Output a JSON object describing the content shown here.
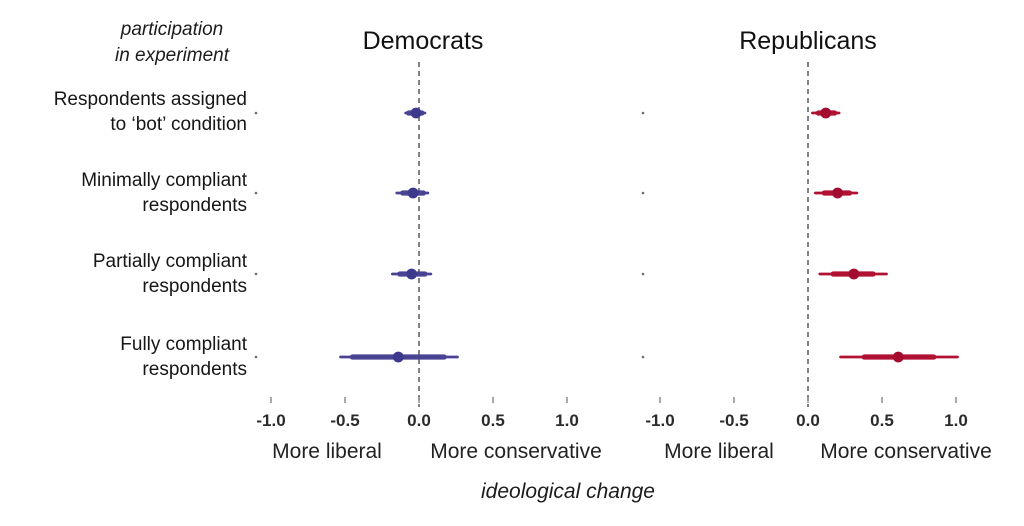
{
  "y_axis_title": {
    "lines": [
      "participation",
      "in experiment"
    ]
  },
  "chart_data": {
    "type": "scatter",
    "subtype": "dot-whisker-forest-plot",
    "title": "",
    "xlabel": "ideological change",
    "ylabel": "participation in experiment",
    "grid": false,
    "legend_position": "none",
    "zero_line": {
      "style": "dashed",
      "color": "#4d4d4d"
    },
    "xlim": [
      -1.25,
      1.25
    ],
    "x_ticks": [
      -1.0,
      -0.5,
      0.0,
      0.5,
      1.0
    ],
    "x_tick_labels": [
      "-1.0",
      "-0.5",
      "0.0",
      "0.5",
      "1.0"
    ],
    "direction_labels": {
      "left": "More liberal",
      "right": "More conservative"
    },
    "categories": [
      [
        "Respondents assigned",
        "to ‘bot’ condition"
      ],
      [
        "Minimally compliant",
        "respondents"
      ],
      [
        "Partially compliant",
        "respondents"
      ],
      [
        "Fully compliant",
        "respondents"
      ]
    ],
    "panels": [
      {
        "title": "Democrats",
        "bar_color": "#4a4394",
        "dot_color": "#3d3a8e",
        "points": [
          {
            "estimate": -0.02,
            "inner_ci": [
              -0.07,
              0.02
            ],
            "outer_ci": [
              -0.09,
              0.04
            ]
          },
          {
            "estimate": -0.04,
            "inner_ci": [
              -0.11,
              0.03
            ],
            "outer_ci": [
              -0.15,
              0.06
            ]
          },
          {
            "estimate": -0.05,
            "inner_ci": [
              -0.13,
              0.04
            ],
            "outer_ci": [
              -0.18,
              0.08
            ]
          },
          {
            "estimate": -0.14,
            "inner_ci": [
              -0.45,
              0.17
            ],
            "outer_ci": [
              -0.53,
              0.26
            ]
          }
        ]
      },
      {
        "title": "Republicans",
        "bar_color": "#b11233",
        "dot_color": "#a30c2f",
        "points": [
          {
            "estimate": 0.12,
            "inner_ci": [
              0.07,
              0.18
            ],
            "outer_ci": [
              0.03,
              0.21
            ]
          },
          {
            "estimate": 0.2,
            "inner_ci": [
              0.11,
              0.28
            ],
            "outer_ci": [
              0.05,
              0.33
            ]
          },
          {
            "estimate": 0.31,
            "inner_ci": [
              0.17,
              0.44
            ],
            "outer_ci": [
              0.08,
              0.53
            ]
          },
          {
            "estimate": 0.61,
            "inner_ci": [
              0.38,
              0.85
            ],
            "outer_ci": [
              0.22,
              1.01
            ]
          }
        ]
      }
    ]
  }
}
